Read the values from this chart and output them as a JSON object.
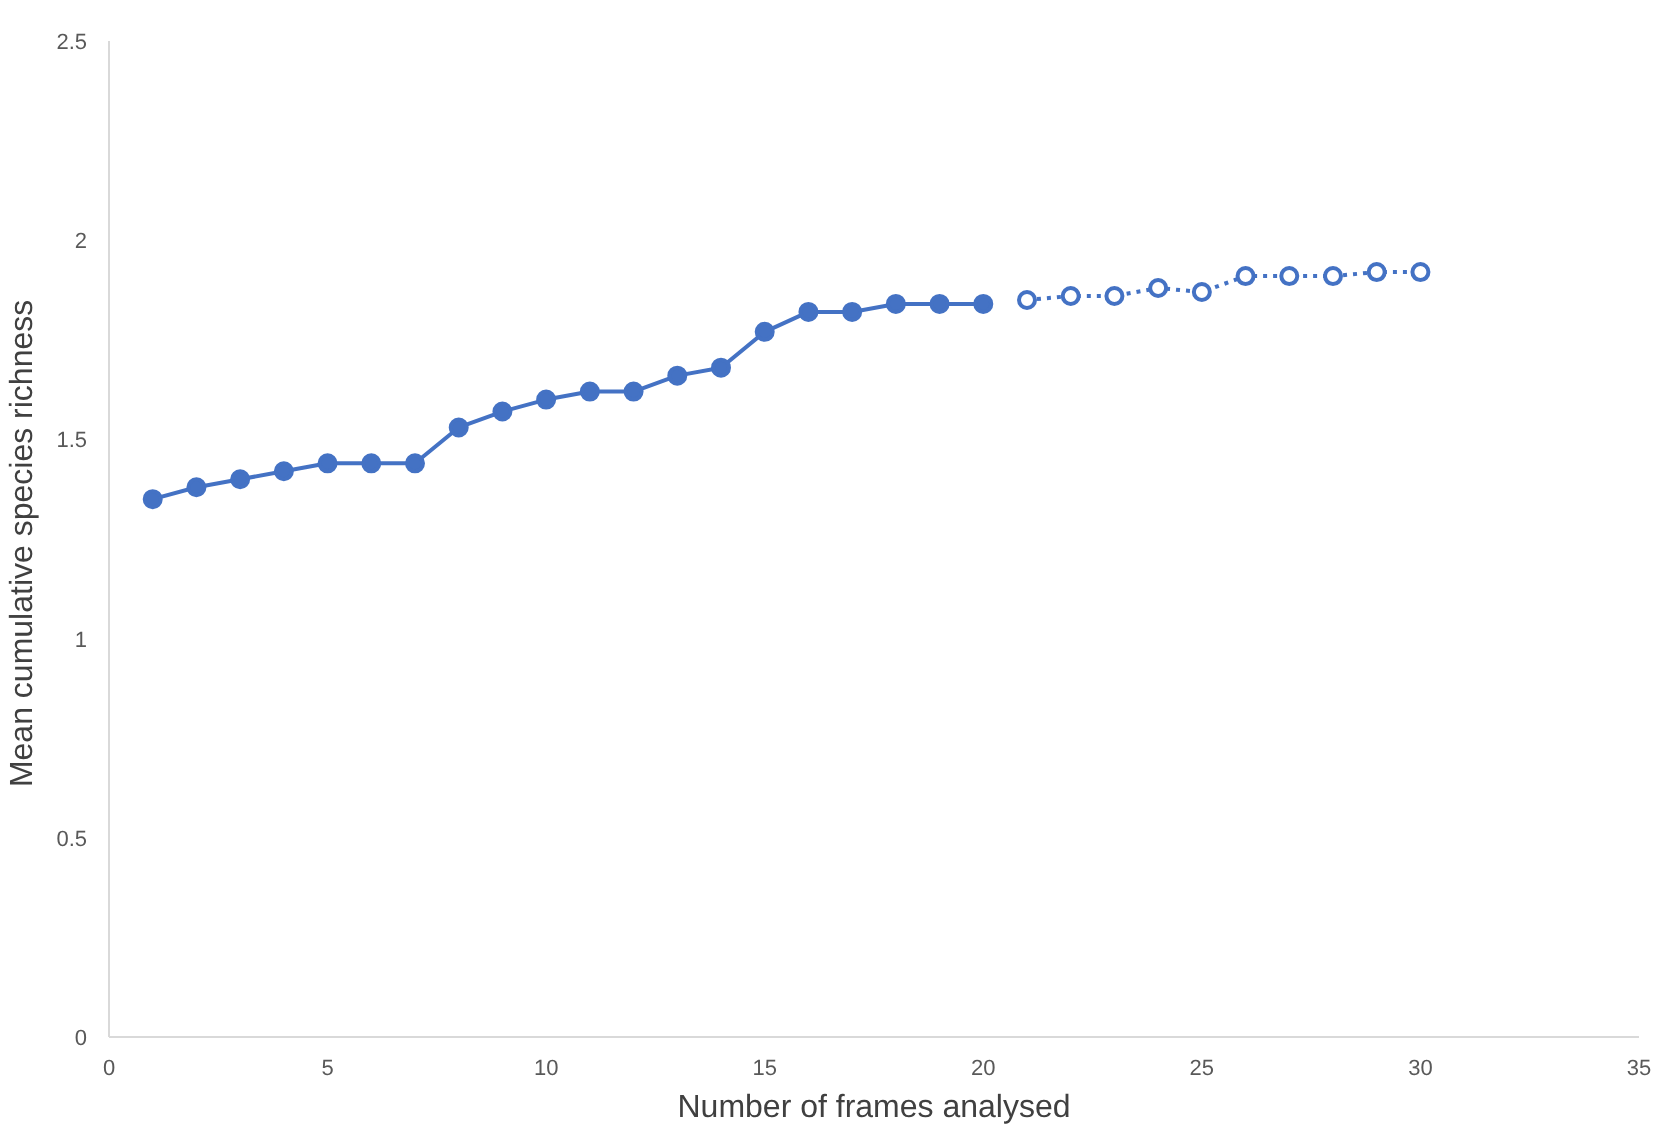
{
  "chart_data": {
    "type": "line",
    "xlabel": "Number of frames analysed",
    "ylabel": "Mean  cumulative species richness",
    "xlim": [
      0,
      35
    ],
    "xticks": [
      0,
      5,
      10,
      15,
      20,
      25,
      30,
      35
    ],
    "ylim": [
      0,
      2.5
    ],
    "yticks": [
      0,
      0.5,
      1,
      1.5,
      2,
      2.5
    ],
    "grid": false,
    "marker": "circle",
    "series": [
      {
        "color": "#4472c4",
        "line_style": "dotted",
        "x": [
          21,
          22,
          23,
          24,
          25,
          26,
          27,
          28,
          29,
          30
        ],
        "values": [
          1.85,
          1.86,
          1.86,
          1.88,
          1.87,
          1.91,
          1.91,
          1.91,
          1.92,
          1.92
        ]
      },
      {
        "color": "#4472c4",
        "line_style": "solid",
        "x": [
          1,
          2,
          3,
          4,
          5,
          6,
          7,
          8,
          9,
          10,
          11,
          12,
          13,
          14,
          15,
          16,
          17,
          18,
          19,
          20
        ],
        "values": [
          1.35,
          1.38,
          1.4,
          1.42,
          1.44,
          1.44,
          1.44,
          1.53,
          1.57,
          1.6,
          1.62,
          1.62,
          1.66,
          1.68,
          1.77,
          1.82,
          1.82,
          1.84,
          1.84,
          1.84
        ]
      }
    ]
  }
}
